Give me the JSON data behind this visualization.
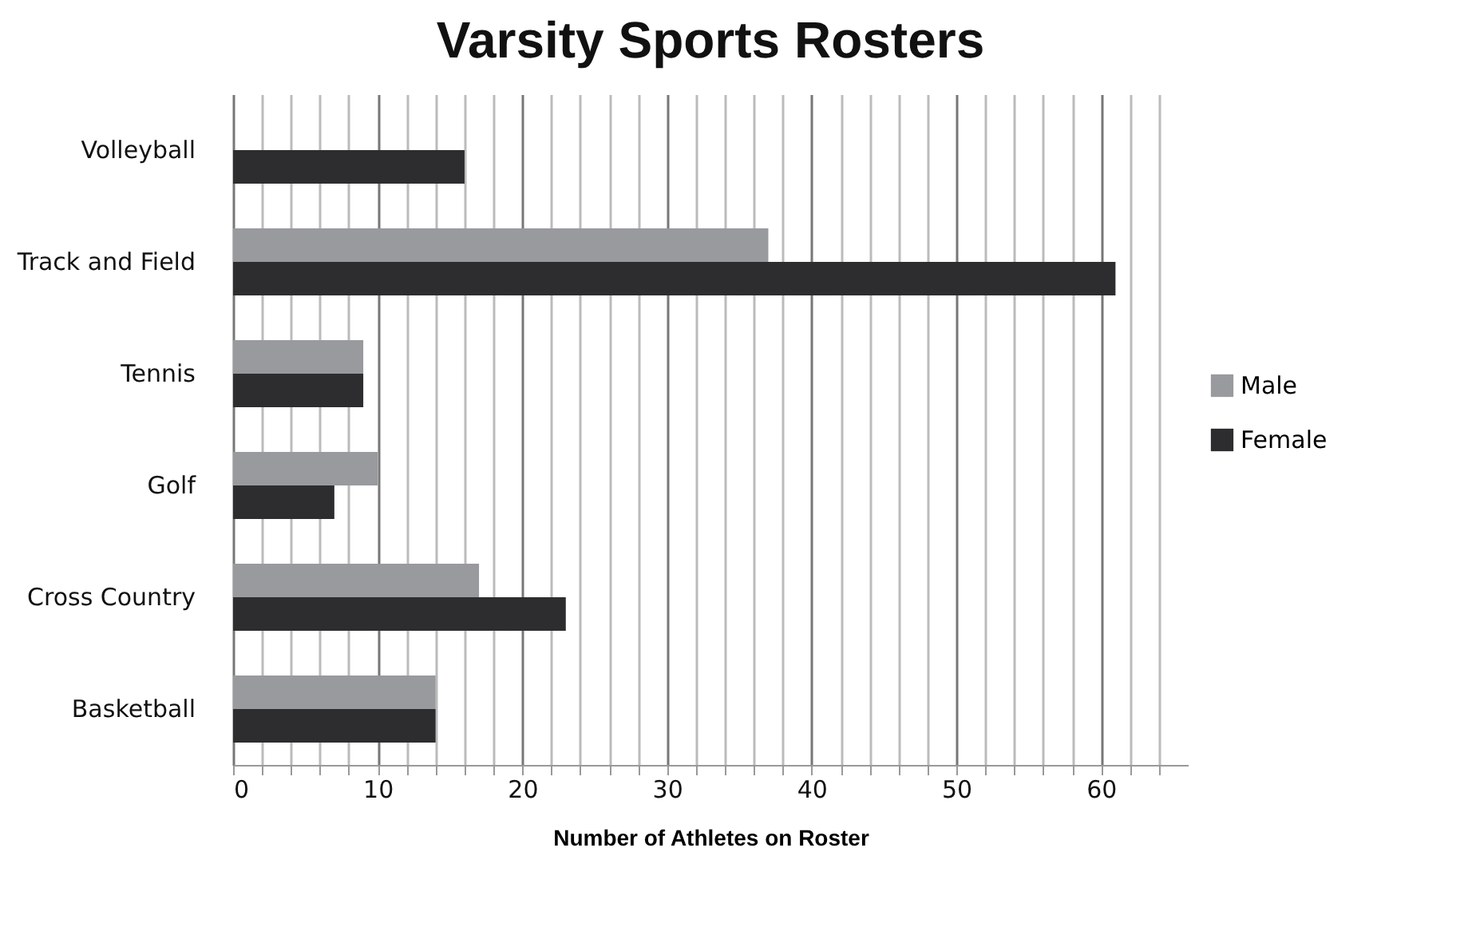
{
  "chart_data": {
    "type": "bar",
    "orientation": "horizontal",
    "title": "Varsity Sports Rosters",
    "xlabel": "Number of Athletes on Roster",
    "categories": [
      "Volleyball",
      "Track and Field",
      "Tennis",
      "Golf",
      "Cross Country",
      "Basketball"
    ],
    "series": [
      {
        "name": "Male",
        "color": "#999a9e",
        "values": [
          null,
          37,
          9,
          10,
          17,
          14
        ]
      },
      {
        "name": "Female",
        "color": "#2d2d2f",
        "values": [
          16,
          61,
          9,
          7,
          23,
          14
        ]
      }
    ],
    "xlim": [
      0,
      66
    ],
    "xticks": [
      0,
      {
        "value": 2,
        "label": null
      },
      {
        "value": 4,
        "label": null
      },
      {
        "value": 6,
        "label": null
      },
      {
        "value": 8,
        "label": null
      },
      10,
      {
        "value": 12,
        "label": null
      },
      {
        "value": 14,
        "label": null
      },
      {
        "value": 16,
        "label": null
      },
      {
        "value": 18,
        "label": null
      },
      20,
      {
        "value": 22,
        "label": null
      },
      {
        "value": 24,
        "label": null
      },
      {
        "value": 26,
        "label": null
      },
      {
        "value": 28,
        "label": null
      },
      30,
      {
        "value": 32,
        "label": null
      },
      {
        "value": 34,
        "label": null
      },
      {
        "value": 36,
        "label": null
      },
      {
        "value": 38,
        "label": null
      },
      40,
      {
        "value": 42,
        "label": null
      },
      {
        "value": 44,
        "label": null
      },
      {
        "value": 46,
        "label": null
      },
      {
        "value": 48,
        "label": null
      },
      50,
      {
        "value": 52,
        "label": null
      },
      {
        "value": 54,
        "label": null
      },
      {
        "value": 56,
        "label": null
      },
      {
        "value": 58,
        "label": null
      },
      60,
      {
        "value": 62,
        "label": null
      },
      {
        "value": 64,
        "label": null
      }
    ],
    "grid": "x",
    "legend": "right"
  }
}
